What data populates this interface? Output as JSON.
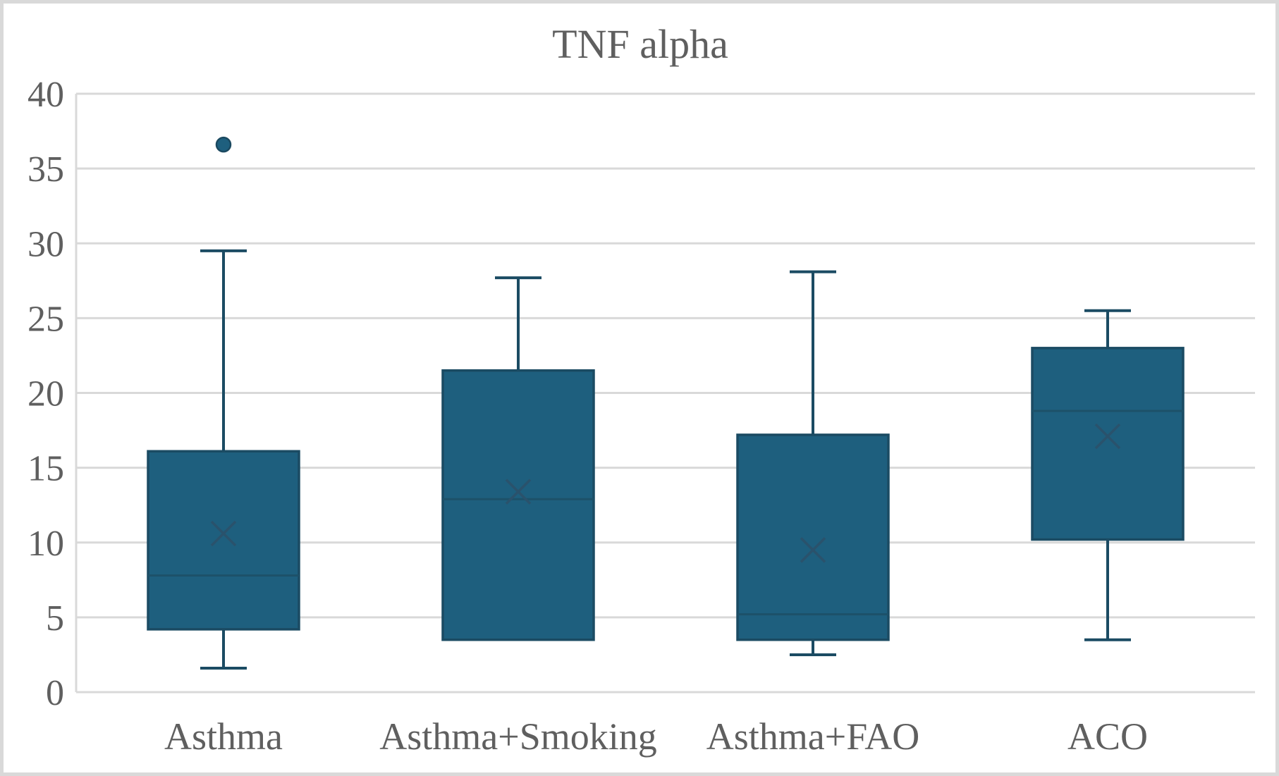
{
  "chart_data": {
    "type": "box",
    "title": "TNF alpha",
    "categories": [
      "Asthma",
      "Asthma+Smoking",
      "Asthma+FAO",
      "ACO"
    ],
    "series": [
      {
        "name": "Asthma",
        "min": 1.6,
        "q1": 4.2,
        "median": 7.8,
        "q3": 16.1,
        "max": 29.5,
        "mean": 10.6,
        "outliers": [
          36.6
        ]
      },
      {
        "name": "Asthma+Smoking",
        "min": 3.5,
        "q1": 3.5,
        "median": 12.9,
        "q3": 21.5,
        "max": 27.7,
        "mean": 13.4,
        "outliers": []
      },
      {
        "name": "Asthma+FAO",
        "min": 2.5,
        "q1": 3.5,
        "median": 5.2,
        "q3": 17.2,
        "max": 28.1,
        "mean": 9.5,
        "outliers": []
      },
      {
        "name": "ACO",
        "min": 3.5,
        "q1": 10.2,
        "median": 18.8,
        "q3": 23.0,
        "max": 25.5,
        "mean": 17.1,
        "outliers": []
      }
    ],
    "ylim": [
      0,
      40
    ],
    "ytick_step": 5,
    "yticks": [
      "0",
      "5",
      "10",
      "15",
      "20",
      "25",
      "30",
      "35",
      "40"
    ],
    "xlabel": "",
    "ylabel": "",
    "grid": "horizontal",
    "legend": "none",
    "colors": {
      "box_fill": "#1e5f7e",
      "box_border": "#1b4b63",
      "median_line": "#1d5169",
      "whisker": "#1b4b63",
      "mean_marker": "#2a526c",
      "outlier_fill": "#1e5f7e",
      "outlier_border": "#1b4960",
      "gridline": "#d9d9d9",
      "axis_line": "#d9d9d9",
      "text": "#5f5f5f",
      "frame_border": "#d9d9d9",
      "background": "#ffffff"
    }
  }
}
